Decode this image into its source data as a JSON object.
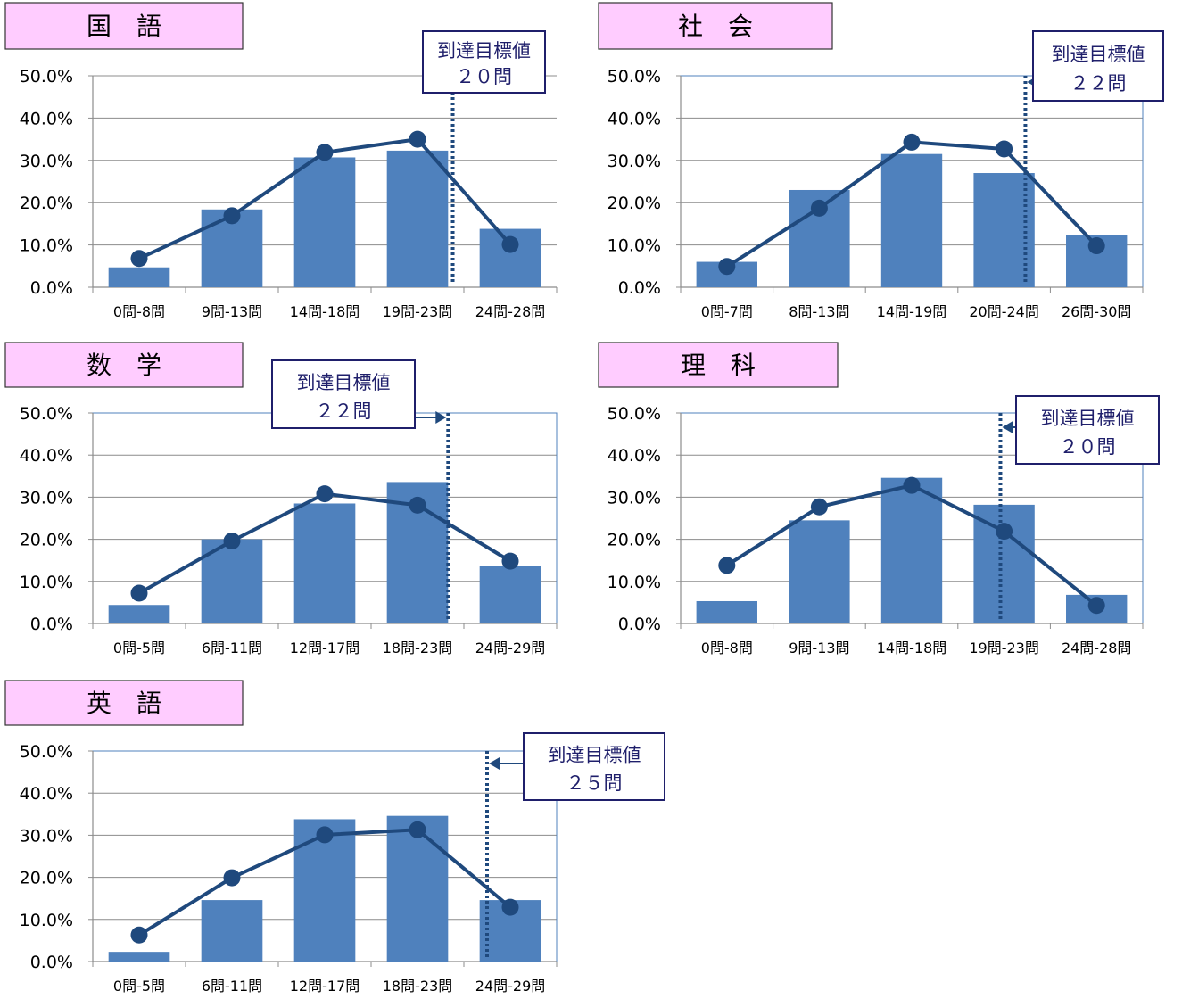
{
  "colors": {
    "bar": "#4f81bd",
    "line": "#1f497d",
    "title_bg": "#ffccff",
    "grid": "#8c8c8c",
    "frame": "#4f81bd",
    "callout_border": "#1f1f6b",
    "text": "#000000",
    "callout_text": "#1f1f6b"
  },
  "chart_data": [
    {
      "type": "bar",
      "title": "国　語",
      "categories": [
        "0問-8問",
        "9問-13問",
        "14問-18問",
        "19問-23問",
        "24問-28問"
      ],
      "bars": [
        4.7,
        18.4,
        30.7,
        32.3,
        13.8
      ],
      "line": [
        6.8,
        16.9,
        31.9,
        35.0,
        10.1
      ],
      "ylim": [
        0,
        50
      ],
      "y_ticks": [
        "0.0%",
        "10.0%",
        "20.0%",
        "30.0%",
        "40.0%",
        "50.0%"
      ],
      "target_label": "到達目標値",
      "target_value": "２０問"
    },
    {
      "type": "bar",
      "title": "社　会",
      "categories": [
        "0問-7問",
        "8問-13問",
        "14問-19問",
        "20問-24問",
        "26問-30問"
      ],
      "bars": [
        6.0,
        23.0,
        31.5,
        27.0,
        12.3
      ],
      "line": [
        4.9,
        18.7,
        34.3,
        32.7,
        9.8
      ],
      "ylim": [
        0,
        50
      ],
      "y_ticks": [
        "0.0%",
        "10.0%",
        "20.0%",
        "30.0%",
        "40.0%",
        "50.0%"
      ],
      "target_label": "到達目標値",
      "target_value": "２２問"
    },
    {
      "type": "bar",
      "title": "数　学",
      "categories": [
        "0問-5問",
        "6問-11問",
        "12問-17問",
        "18問-23問",
        "24問-29問"
      ],
      "bars": [
        4.4,
        20.0,
        28.5,
        33.6,
        13.6
      ],
      "line": [
        7.2,
        19.6,
        30.8,
        28.1,
        14.8
      ],
      "ylim": [
        0,
        50
      ],
      "y_ticks": [
        "0.0%",
        "10.0%",
        "20.0%",
        "30.0%",
        "40.0%",
        "50.0%"
      ],
      "target_label": "到達目標値",
      "target_value": "２２問"
    },
    {
      "type": "bar",
      "title": "理　科",
      "categories": [
        "0問-8問",
        "9問-13問",
        "14問-18問",
        "19問-23問",
        "24問-28問"
      ],
      "bars": [
        5.3,
        24.5,
        34.6,
        28.2,
        6.8
      ],
      "line": [
        13.8,
        27.7,
        32.8,
        21.9,
        4.3
      ],
      "ylim": [
        0,
        50
      ],
      "y_ticks": [
        "0.0%",
        "10.0%",
        "20.0%",
        "30.0%",
        "40.0%",
        "50.0%"
      ],
      "target_label": "到達目標値",
      "target_value": "２０問"
    },
    {
      "type": "bar",
      "title": "英　語",
      "categories": [
        "0問-5問",
        "6問-11問",
        "12問-17問",
        "18問-23問",
        "24問-29問"
      ],
      "bars": [
        2.3,
        14.6,
        33.8,
        34.6,
        14.6
      ],
      "line": [
        6.3,
        19.9,
        30.1,
        31.3,
        12.9
      ],
      "ylim": [
        0,
        50
      ],
      "y_ticks": [
        "0.0%",
        "10.0%",
        "20.0%",
        "30.0%",
        "40.0%",
        "50.0%"
      ],
      "target_label": "到達目標値",
      "target_value": "２５問"
    }
  ]
}
